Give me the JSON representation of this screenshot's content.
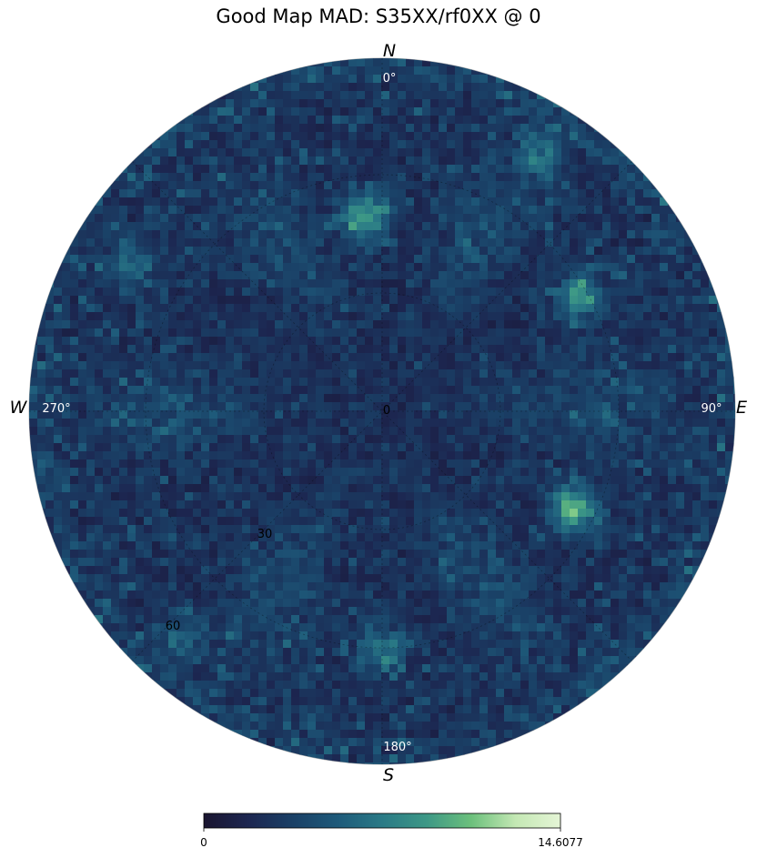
{
  "title": "Good Map MAD: S35XX/rf0XX @ 0",
  "compass": {
    "north": "N",
    "south": "S",
    "east": "E",
    "west": "W"
  },
  "azimuth_labels": {
    "north": "0$^\\circ$",
    "east": "90$^\\circ$",
    "south": "180$^\\circ$",
    "west": "270$^\\circ$"
  },
  "azimuth_display": {
    "north": "0°",
    "east": "90°",
    "south": "180°",
    "west": "270°"
  },
  "radial_labels": [
    "0",
    "30",
    "60"
  ],
  "colors": {
    "colormap": [
      "#1a1530",
      "#1c2650",
      "#1a4066",
      "#1e5a7a",
      "#2a7a86",
      "#3d9886",
      "#6cc07c",
      "#c4e8b4",
      "#e5f5d6"
    ],
    "background": "#ffffff"
  },
  "chart_data": {
    "type": "heatmap",
    "projection": "polar (zenith-angle vs azimuth)",
    "title": "Good Map MAD: S35XX/rf0XX @ 0",
    "azimuth_ticks": [
      "0°",
      "90°",
      "180°",
      "270°"
    ],
    "radial_ticks": [
      0,
      30,
      60
    ],
    "colorbar": {
      "min": 0,
      "max": 14.6077,
      "min_label": "0",
      "max_label": "14.6077"
    },
    "hotspots": [
      {
        "azimuth_deg": 355,
        "zenith_deg": 50,
        "value": 11.5
      },
      {
        "azimuth_deg": 117,
        "zenith_deg": 55,
        "value": 12.0
      },
      {
        "azimuth_deg": 60,
        "zenith_deg": 58,
        "value": 9.0
      },
      {
        "azimuth_deg": 180,
        "zenith_deg": 61,
        "value": 8.0
      },
      {
        "azimuth_deg": 300,
        "zenith_deg": 74,
        "value": 7.5
      },
      {
        "azimuth_deg": 32,
        "zenith_deg": 77,
        "value": 7.0
      },
      {
        "azimuth_deg": 222,
        "zenith_deg": 77,
        "value": 6.5
      }
    ]
  },
  "colorbar_labels": {
    "min": "0",
    "max": "14.6077"
  }
}
